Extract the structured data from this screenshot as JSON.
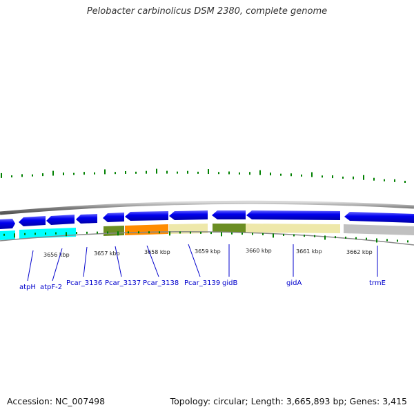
{
  "title": "Pelobacter carbinolicus DSM 2380, complete genome",
  "footer": {
    "accession": "Accession: NC_007498",
    "summary": "Topology: circular; Length: 3,665,893 bp; Genes: 3,415"
  },
  "scale_labels": [
    "3656 kbp",
    "3657 kbp",
    "3658 kbp",
    "3659 kbp",
    "3660 kbp",
    "3661 kbp",
    "3662 kbp"
  ],
  "genes": [
    {
      "label": "atpH"
    },
    {
      "label": "atpF-2"
    },
    {
      "label": "Pcar_3136"
    },
    {
      "label": "Pcar_3137"
    },
    {
      "label": "Pcar_3138"
    },
    {
      "label": "Pcar_3139"
    },
    {
      "label": "gidB"
    },
    {
      "label": "gidA"
    },
    {
      "label": "trmE"
    }
  ],
  "colors": {
    "gene_arrow": "#0000ee",
    "cyan_block": "#00ffff",
    "olive_block": "#6b8e23",
    "orange_block": "#ff8c00",
    "khaki_block": "#eee8aa",
    "gray_block": "#c0c0c0",
    "tick_green": "#008000",
    "label_blue": "#0000cc",
    "backbone": "#808080"
  }
}
